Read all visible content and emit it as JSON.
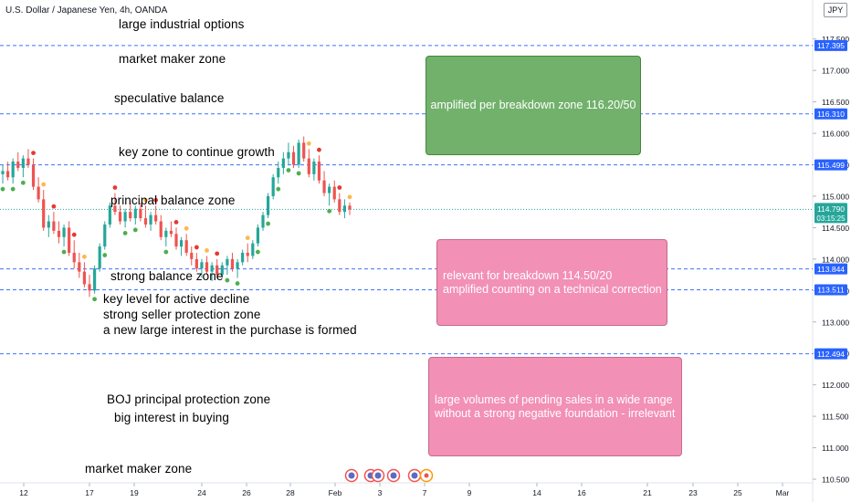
{
  "header": {
    "title": "U.S. Dollar / Japanese Yen, 4h, OANDA",
    "currency": "JPY"
  },
  "colors": {
    "up": "#26a69a",
    "down": "#ef5350",
    "level_line": "#2962ff",
    "dot_green": "#4caf50",
    "dot_red": "#e53935",
    "dot_orange": "#ffb74d"
  },
  "chart_data": {
    "type": "candlestick",
    "symbol": "USDJPY",
    "timeframe": "4h",
    "ylim": [
      110.35,
      117.75
    ],
    "y_ticks": [
      "117.500",
      "117.000",
      "116.500",
      "116.000",
      "115.500",
      "115.000",
      "114.500",
      "114.000",
      "113.500",
      "113.000",
      "112.500",
      "112.000",
      "111.500",
      "111.000",
      "110.500"
    ],
    "x_ticks": [
      "12",
      "17",
      "19",
      "24",
      "26",
      "28",
      "Feb",
      "3",
      "7",
      "9",
      "14",
      "16",
      "21",
      "23",
      "25",
      "Mar"
    ],
    "levels": [
      {
        "price": 117.395,
        "label": "117.395"
      },
      {
        "price": 116.31,
        "label": "116.310"
      },
      {
        "price": 115.499,
        "label": "115.499"
      },
      {
        "price": 113.844,
        "label": "113.844"
      },
      {
        "price": 113.511,
        "label": "113.511"
      },
      {
        "price": 112.494,
        "label": "112.494"
      }
    ],
    "last_price": {
      "price": 114.79,
      "label": "114.790",
      "countdown": "03:15:25"
    },
    "candles": [
      [
        115.35,
        115.5,
        115.2,
        115.4
      ],
      [
        115.4,
        115.55,
        115.25,
        115.3
      ],
      [
        115.3,
        115.6,
        115.2,
        115.55
      ],
      [
        115.55,
        115.7,
        115.4,
        115.45
      ],
      [
        115.45,
        115.65,
        115.3,
        115.6
      ],
      [
        115.6,
        115.75,
        115.45,
        115.5
      ],
      [
        115.5,
        115.6,
        115.1,
        115.15
      ],
      [
        115.15,
        115.3,
        114.9,
        114.95
      ],
      [
        114.95,
        115.1,
        114.45,
        114.5
      ],
      [
        114.5,
        114.7,
        114.35,
        114.6
      ],
      [
        114.6,
        114.75,
        114.4,
        114.45
      ],
      [
        114.45,
        114.6,
        114.25,
        114.35
      ],
      [
        114.35,
        114.55,
        114.2,
        114.5
      ],
      [
        114.5,
        114.6,
        114.05,
        114.1
      ],
      [
        114.1,
        114.3,
        113.85,
        113.95
      ],
      [
        113.95,
        114.1,
        113.7,
        113.8
      ],
      [
        113.8,
        113.95,
        113.55,
        113.6
      ],
      [
        113.6,
        113.75,
        113.4,
        113.5
      ],
      [
        113.5,
        113.9,
        113.45,
        113.85
      ],
      [
        113.85,
        114.25,
        113.8,
        114.2
      ],
      [
        114.2,
        114.6,
        114.15,
        114.55
      ],
      [
        114.55,
        114.9,
        114.5,
        114.85
      ],
      [
        114.85,
        115.05,
        114.7,
        114.75
      ],
      [
        114.75,
        114.85,
        114.55,
        114.6
      ],
      [
        114.6,
        114.8,
        114.5,
        114.75
      ],
      [
        114.75,
        114.9,
        114.6,
        114.65
      ],
      [
        114.65,
        114.85,
        114.55,
        114.8
      ],
      [
        114.8,
        114.9,
        114.6,
        114.65
      ],
      [
        114.65,
        114.85,
        114.5,
        114.55
      ],
      [
        114.55,
        114.75,
        114.45,
        114.7
      ],
      [
        114.7,
        114.85,
        114.55,
        114.6
      ],
      [
        114.6,
        114.7,
        114.3,
        114.35
      ],
      [
        114.35,
        114.5,
        114.2,
        114.45
      ],
      [
        114.45,
        114.6,
        114.35,
        114.4
      ],
      [
        114.4,
        114.5,
        114.15,
        114.2
      ],
      [
        114.2,
        114.35,
        114.05,
        114.3
      ],
      [
        114.3,
        114.4,
        114.05,
        114.1
      ],
      [
        114.1,
        114.2,
        113.9,
        114.0
      ],
      [
        114.0,
        114.1,
        113.8,
        113.85
      ],
      [
        113.85,
        114.0,
        113.7,
        113.95
      ],
      [
        113.95,
        114.05,
        113.75,
        113.8
      ],
      [
        113.8,
        113.95,
        113.65,
        113.9
      ],
      [
        113.9,
        114.0,
        113.7,
        113.75
      ],
      [
        113.75,
        113.95,
        113.7,
        113.9
      ],
      [
        113.9,
        114.05,
        113.75,
        114.0
      ],
      [
        114.0,
        114.1,
        113.8,
        113.85
      ],
      [
        113.85,
        114.0,
        113.7,
        113.95
      ],
      [
        113.95,
        114.15,
        113.9,
        114.1
      ],
      [
        114.1,
        114.25,
        113.95,
        114.05
      ],
      [
        114.05,
        114.3,
        114.0,
        114.25
      ],
      [
        114.25,
        114.55,
        114.2,
        114.5
      ],
      [
        114.5,
        114.75,
        114.45,
        114.7
      ],
      [
        114.7,
        115.05,
        114.65,
        115.0
      ],
      [
        115.0,
        115.35,
        114.95,
        115.3
      ],
      [
        115.3,
        115.55,
        115.2,
        115.45
      ],
      [
        115.45,
        115.7,
        115.35,
        115.6
      ],
      [
        115.6,
        115.85,
        115.5,
        115.7
      ],
      [
        115.7,
        115.8,
        115.45,
        115.5
      ],
      [
        115.5,
        115.9,
        115.45,
        115.85
      ],
      [
        115.85,
        115.95,
        115.55,
        115.6
      ],
      [
        115.6,
        115.75,
        115.3,
        115.35
      ],
      [
        115.35,
        115.6,
        115.25,
        115.55
      ],
      [
        115.55,
        115.65,
        115.2,
        115.25
      ],
      [
        115.25,
        115.4,
        115.0,
        115.05
      ],
      [
        115.05,
        115.2,
        114.85,
        115.15
      ],
      [
        115.15,
        115.25,
        114.9,
        114.95
      ],
      [
        114.95,
        115.05,
        114.7,
        114.75
      ],
      [
        114.75,
        114.95,
        114.65,
        114.85
      ],
      [
        114.85,
        114.9,
        114.7,
        114.79
      ]
    ]
  },
  "annotations": [
    "large industrial options",
    "market maker zone",
    "speculative balance",
    "key zone to continue growth",
    "principal balance zone",
    "strong balance zone",
    "key level for active decline",
    "strong seller protection zone",
    "a new large interest in the purchase is formed",
    "BOJ principal protection zone",
    "big interest in buying",
    "market maker zone"
  ],
  "boxes": [
    {
      "lines": [
        "amplified per breakdown zone 116.20/50"
      ]
    },
    {
      "lines": [
        "relevant for breakdown 114.50/20",
        "amplified counting on a technical correction"
      ]
    },
    {
      "lines": [
        "large volumes of pending sales in a wide range",
        "without a strong negative foundation - irrelevant"
      ]
    }
  ]
}
